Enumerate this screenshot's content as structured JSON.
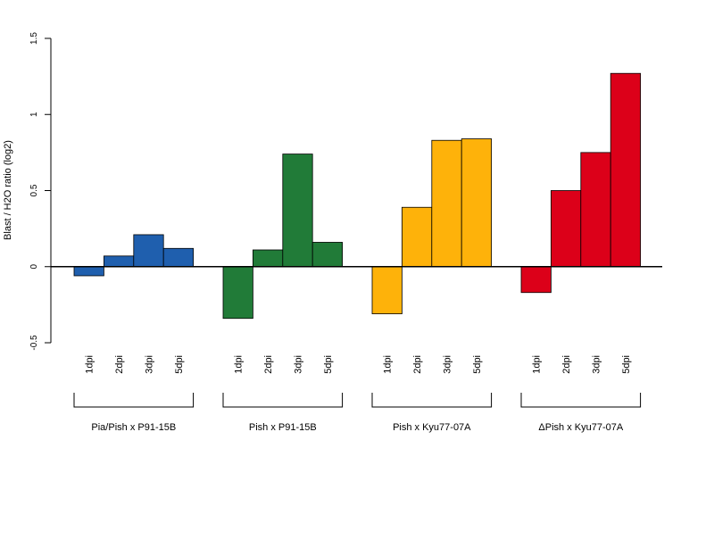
{
  "chart_data": {
    "type": "bar",
    "ylabel": "Blast / H2O ratio (log2)",
    "ylim": [
      -0.5,
      1.5
    ],
    "y_ticks": [
      "-0.5",
      "0",
      "0.5",
      "1",
      "1.5"
    ],
    "y_tick_values": [
      -0.5,
      0,
      0.5,
      1,
      1.5
    ],
    "legend": "none",
    "grid": false,
    "groups": [
      {
        "name": "Pia/Pish x P91-15B",
        "color": "#1f5fae",
        "categories": [
          "1dpi",
          "2dpi",
          "3dpi",
          "5dpi"
        ],
        "values": [
          -0.06,
          0.07,
          0.21,
          0.12
        ]
      },
      {
        "name": "Pish x P91-15B",
        "color": "#217b38",
        "categories": [
          "1dpi",
          "2dpi",
          "3dpi",
          "5dpi"
        ],
        "values": [
          -0.34,
          0.11,
          0.74,
          0.16
        ]
      },
      {
        "name": "Pish x Kyu77-07A",
        "color": "#feb20a",
        "categories": [
          "1dpi",
          "2dpi",
          "3dpi",
          "5dpi"
        ],
        "values": [
          -0.31,
          0.39,
          0.83,
          0.84
        ]
      },
      {
        "name": "ΔPish x Kyu77-07A",
        "color": "#dc0019",
        "categories": [
          "1dpi",
          "2dpi",
          "3dpi",
          "5dpi"
        ],
        "values": [
          -0.17,
          0.5,
          0.75,
          1.27
        ]
      }
    ]
  }
}
